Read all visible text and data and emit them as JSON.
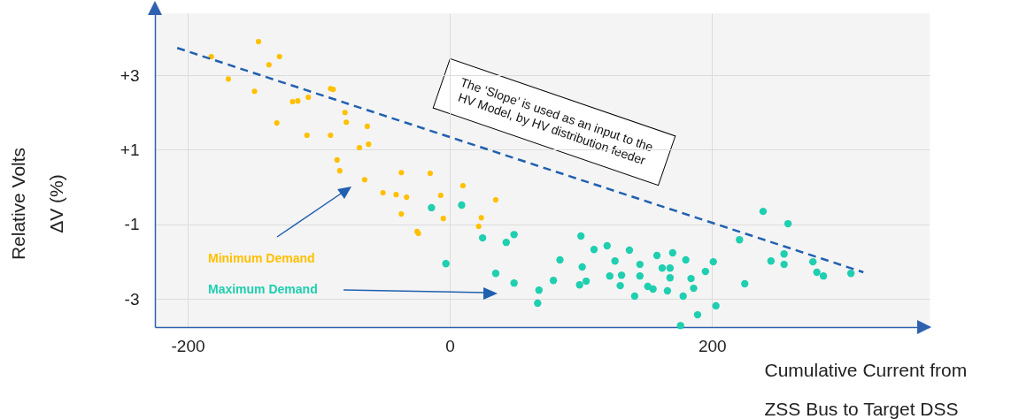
{
  "chart_data": {
    "type": "scatter",
    "xlabel": "Cumulative Current from\nZSS Bus to Target DSS",
    "ylabel": "Relative Volts\nΔV (%)",
    "xlim": [
      -225,
      366
    ],
    "ylim": [
      -3.75,
      4.66
    ],
    "xticks": [
      -200,
      0,
      200
    ],
    "yticks": [
      {
        "value": 3,
        "label": "+3"
      },
      {
        "value": 1,
        "label": "+1"
      },
      -1,
      -3
    ],
    "grid": true,
    "marker": "circle",
    "annotations": [
      "The ‘Slope’ is used as an input to the HV Model, by HV distribution feeder"
    ],
    "series": [
      {
        "name": "Minimum Demand",
        "color": "#ffc000",
        "x": [
          -146,
          -182,
          -130,
          -138,
          -169,
          -149,
          -91,
          -89,
          -108,
          -116,
          -120,
          -80,
          -79,
          -132,
          -63,
          -109,
          -91,
          -62,
          -69,
          -86,
          -84,
          -37,
          -65,
          -51,
          -41,
          -33,
          -15,
          10,
          -7,
          -37,
          -5,
          24,
          -25,
          -24,
          35,
          22
        ],
        "values": [
          3.9,
          3.5,
          3.5,
          3.28,
          2.9,
          2.57,
          2.64,
          2.62,
          2.41,
          2.31,
          2.29,
          2.0,
          1.74,
          1.72,
          1.63,
          1.39,
          1.39,
          1.15,
          1.06,
          0.73,
          0.44,
          0.39,
          0.2,
          -0.15,
          -0.2,
          -0.27,
          0.37,
          0.04,
          -0.22,
          -0.72,
          -0.84,
          -0.82,
          -1.19,
          -1.24,
          -0.34,
          -1.05
        ]
      },
      {
        "name": "Maximum Demand",
        "color": "#1fcfb0",
        "x": [
          -14,
          9,
          25,
          43,
          49,
          -3,
          35,
          49,
          68,
          67,
          79,
          84,
          100,
          110,
          120,
          101,
          99,
          104,
          122,
          131,
          130,
          126,
          137,
          141,
          145,
          145,
          158,
          170,
          162,
          168,
          180,
          168,
          184,
          151,
          155,
          166,
          178,
          186,
          195,
          201,
          189,
          203,
          176,
          239,
          258,
          221,
          255,
          245,
          255,
          225,
          277,
          280,
          285,
          306
        ],
        "values": [
          -0.55,
          -0.48,
          -1.36,
          -1.48,
          -1.27,
          -2.05,
          -2.31,
          -2.57,
          -2.76,
          -3.11,
          -2.5,
          -1.95,
          -1.31,
          -1.67,
          -1.57,
          -2.14,
          -2.62,
          -2.52,
          -2.38,
          -2.36,
          -2.64,
          -1.98,
          -1.69,
          -2.92,
          -2.07,
          -2.38,
          -1.83,
          -1.76,
          -2.17,
          -2.17,
          -1.95,
          -2.43,
          -2.45,
          -2.66,
          -2.73,
          -2.78,
          -2.92,
          -2.71,
          -2.26,
          -2.0,
          -3.42,
          -3.18,
          -3.71,
          -0.65,
          -0.98,
          -1.41,
          -1.79,
          -1.98,
          -2.07,
          -2.59,
          -2.0,
          -2.28,
          -2.38,
          -2.31
        ]
      },
      {
        "type": "line",
        "color": "#2060b0",
        "line_style": "dashed",
        "marker": "none",
        "x": [
          -208,
          315.5
        ],
        "values": [
          3.73,
          -2.28
        ]
      }
    ]
  }
}
